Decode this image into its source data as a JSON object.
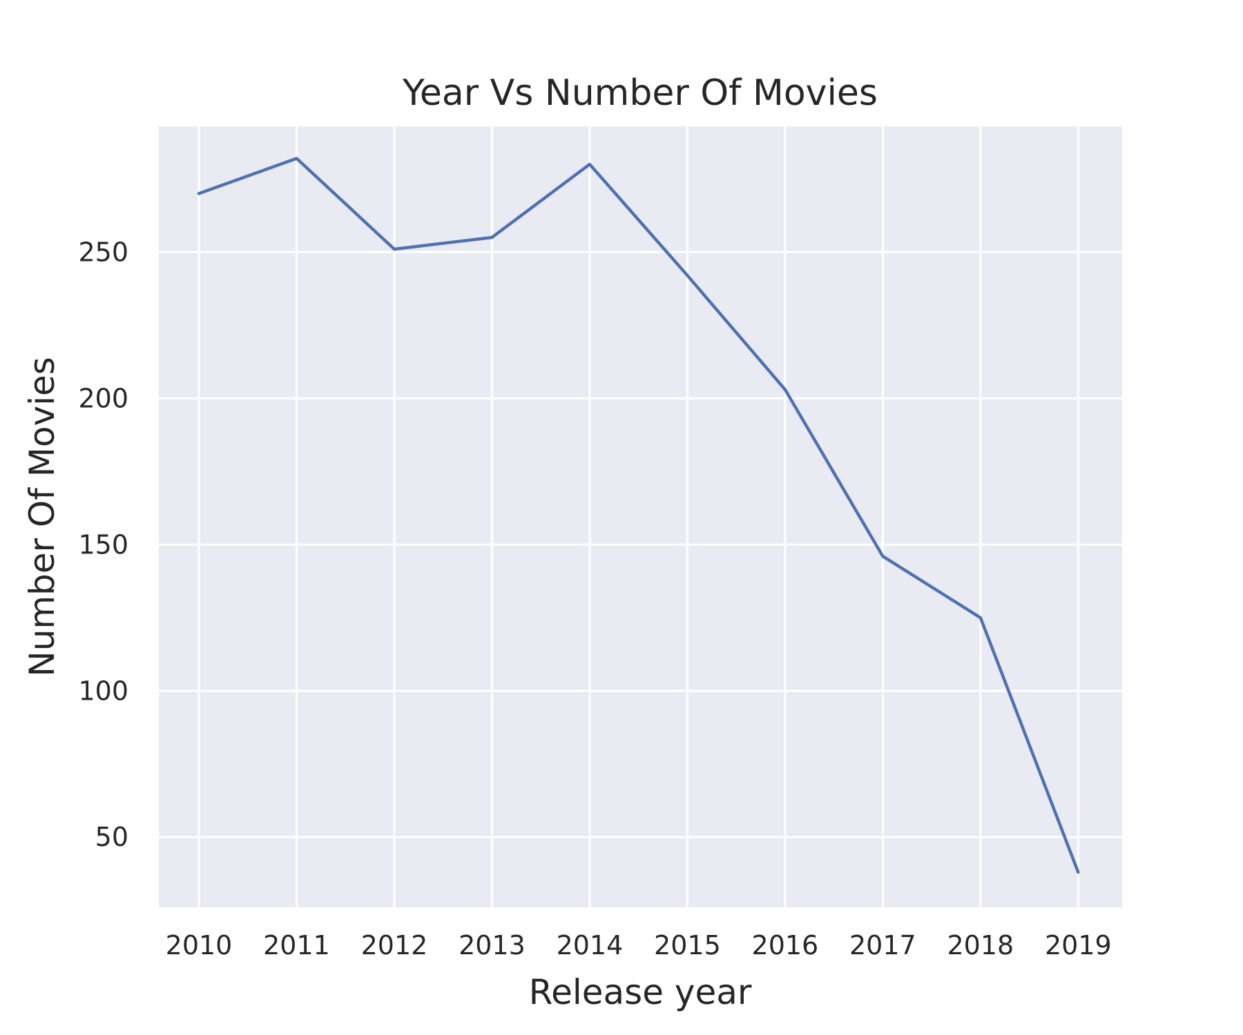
{
  "chart_data": {
    "type": "line",
    "title": "Year Vs Number Of Movies",
    "xlabel": "Release year",
    "ylabel": "Number Of Movies",
    "x": [
      2010,
      2011,
      2012,
      2013,
      2014,
      2015,
      2016,
      2017,
      2018,
      2019
    ],
    "series": [
      {
        "values": [
          270,
          282,
          251,
          255,
          280,
          242,
          203,
          146,
          125,
          38
        ]
      }
    ],
    "xticks": [
      "2010",
      "2011",
      "2012",
      "2013",
      "2014",
      "2015",
      "2016",
      "2017",
      "2018",
      "2019"
    ],
    "yticks": [
      50,
      100,
      150,
      200,
      250
    ],
    "xlim": [
      2009.59,
      2019.45
    ],
    "ylim": [
      26,
      293
    ],
    "grid": true,
    "colors": {
      "line": "#4c72b0",
      "background": "#eaeaf2",
      "grid": "#ffffff",
      "text": "#262626"
    }
  }
}
